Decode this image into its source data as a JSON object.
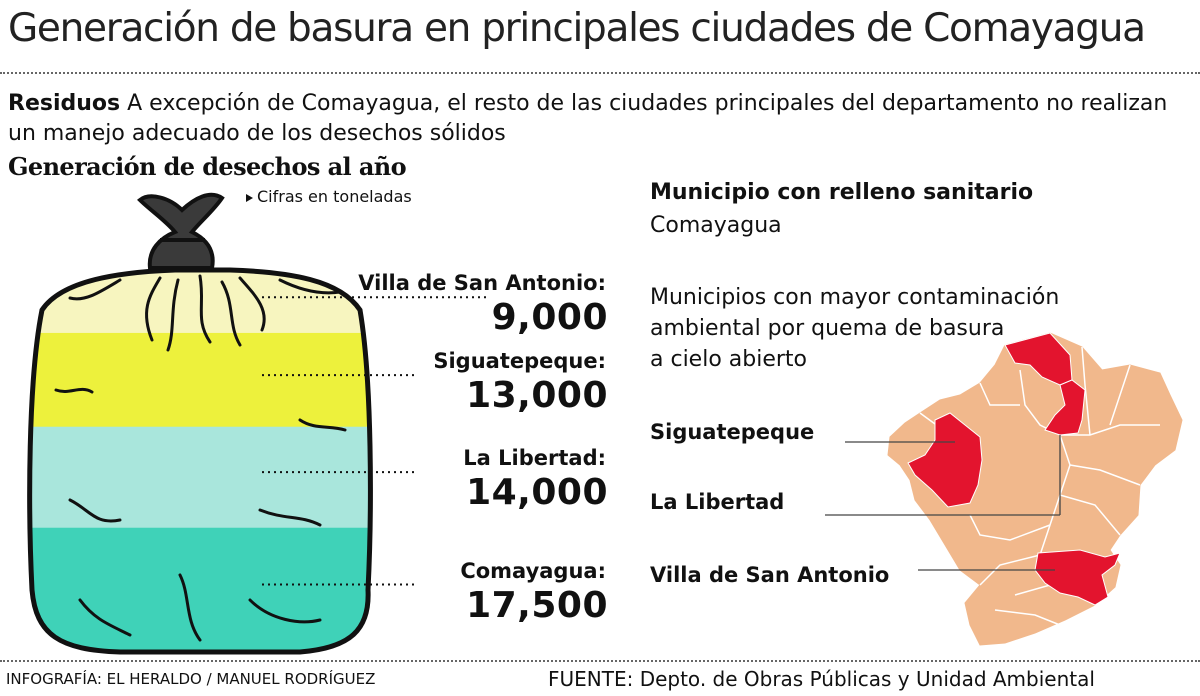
{
  "title": "Generación de basura en principales ciudades de Comayagua",
  "lead": {
    "keyword": "Residuos",
    "text": "A excepción de Comayagua, el  resto de las ciudades principales del departamento no realizan un manejo adecuado de los desechos sólidos"
  },
  "subhead": "Generación de desechos al año",
  "unit_note": "Cifras en toneladas",
  "chart_data": {
    "type": "bar",
    "title": "Generación de desechos al año",
    "unit": "Cifras en toneladas",
    "categories": [
      "Villa de San Antonio:",
      "Siguatepeque:",
      "La Libertad:",
      "Comayagua:"
    ],
    "values": [
      9000,
      13000,
      14000,
      17500
    ],
    "value_labels": [
      "9,000",
      "13,000",
      "14,000",
      "17,500"
    ],
    "colors": [
      "#f7f5bf",
      "#edf13c",
      "#a9e6dc",
      "#3fd2b8"
    ]
  },
  "map": {
    "relleno_heading": "Municipio con relleno sanitario",
    "relleno_city": "Comayagua",
    "contamination_text": [
      "Municipios con mayor contaminación",
      "ambiental por quema de basura",
      "a cielo abierto"
    ],
    "labels": [
      "Siguatepeque",
      "La Libertad",
      "Villa de San Antonio"
    ],
    "colors": {
      "base": "#f1b88c",
      "highlight": "#e3142e",
      "border": "#ffffff"
    }
  },
  "credit": "INFOGRAFÍA: EL HERALDO / MANUEL RODRÍGUEZ",
  "source": "FUENTE: Depto. de Obras Públicas y Unidad Ambiental"
}
